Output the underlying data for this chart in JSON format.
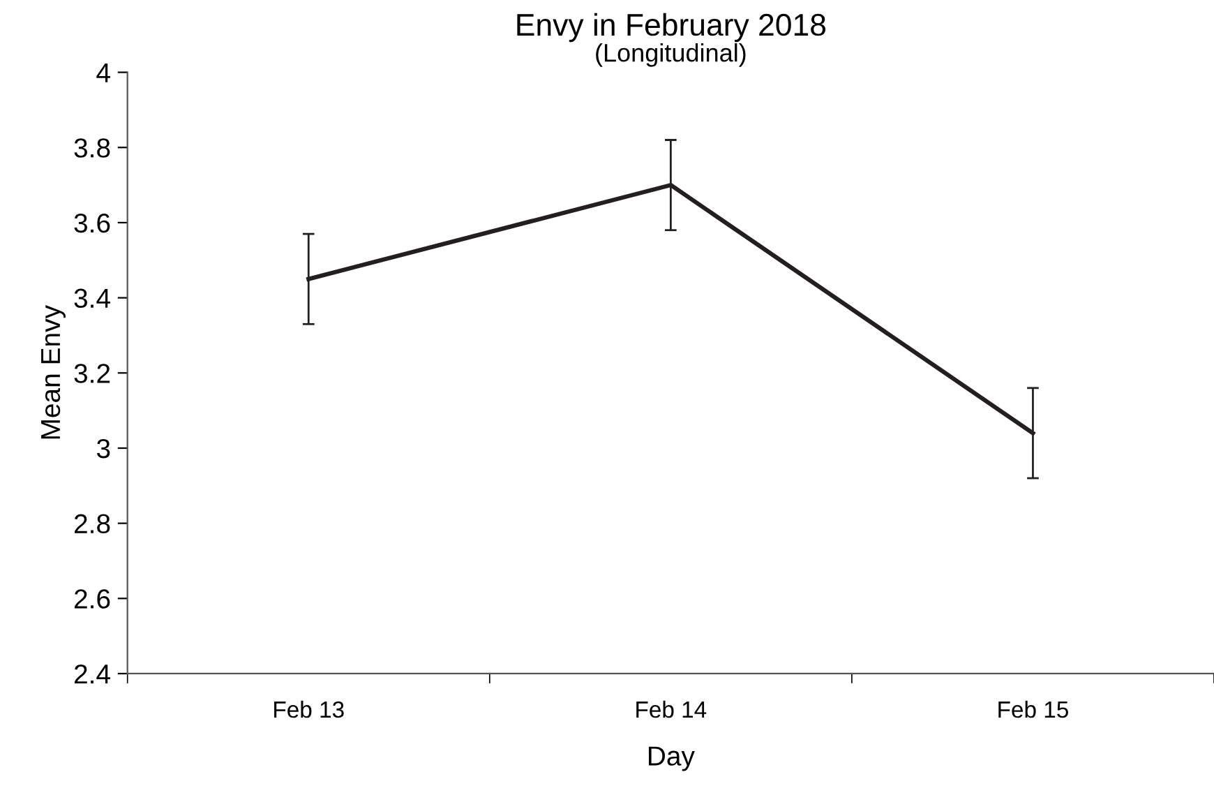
{
  "chart_data": {
    "type": "line",
    "title": "Envy in February 2018",
    "subtitle": "(Longitudinal)",
    "xlabel": "Day",
    "ylabel": "Mean Envy",
    "categories": [
      "Feb 13",
      "Feb 14",
      "Feb 15"
    ],
    "series": [
      {
        "color": "#231f20",
        "values": [
          3.45,
          3.7,
          3.04
        ],
        "errors": [
          0.12,
          0.12,
          0.12
        ]
      }
    ],
    "ylim": [
      2.4,
      4
    ],
    "yticks": [
      2.4,
      2.6,
      2.8,
      3,
      3.2,
      3.4,
      3.6,
      3.8,
      4
    ],
    "grid": false,
    "legend": false,
    "marker": "none",
    "line_style": "solid"
  }
}
